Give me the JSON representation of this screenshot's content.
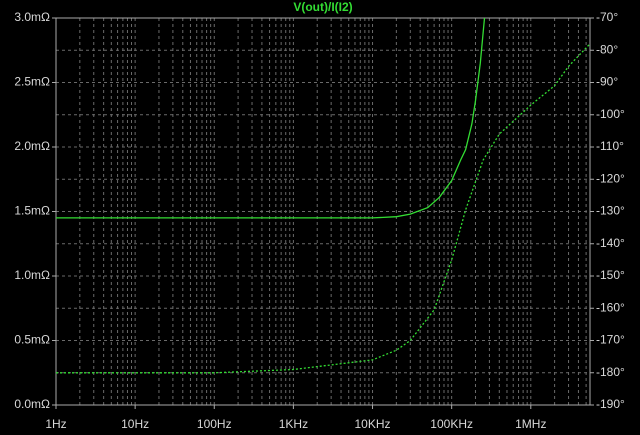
{
  "chart_data": {
    "type": "line",
    "title": "V(out)/I(I2)",
    "xscale": "log",
    "xlim": [
      1,
      5600000
    ],
    "xticks": [
      {
        "value": 1,
        "label": "1Hz"
      },
      {
        "value": 10,
        "label": "10Hz"
      },
      {
        "value": 100,
        "label": "100Hz"
      },
      {
        "value": 1000,
        "label": "1KHz"
      },
      {
        "value": 10000,
        "label": "10KHz"
      },
      {
        "value": 100000,
        "label": "100KHz"
      },
      {
        "value": 1000000,
        "label": "1MHz"
      }
    ],
    "ylim": [
      0,
      3
    ],
    "yticks": [
      {
        "value": 0,
        "label": "0.0mΩ"
      },
      {
        "value": 0.5,
        "label": "0.5mΩ"
      },
      {
        "value": 1,
        "label": "1.0mΩ"
      },
      {
        "value": 1.5,
        "label": "1.5mΩ"
      },
      {
        "value": 2,
        "label": "2.0mΩ"
      },
      {
        "value": 2.5,
        "label": "2.5mΩ"
      },
      {
        "value": 3,
        "label": "3.0mΩ"
      }
    ],
    "y2lim": [
      -190,
      -70
    ],
    "y2ticks": [
      {
        "value": -190,
        "label": "-190°"
      },
      {
        "value": -180,
        "label": "-180°"
      },
      {
        "value": -170,
        "label": "-170°"
      },
      {
        "value": -160,
        "label": "-160°"
      },
      {
        "value": -150,
        "label": "-150°"
      },
      {
        "value": -140,
        "label": "-140°"
      },
      {
        "value": -130,
        "label": "-130°"
      },
      {
        "value": -120,
        "label": "-120°"
      },
      {
        "value": -110,
        "label": "-110°"
      },
      {
        "value": -100,
        "label": "-100°"
      },
      {
        "value": -90,
        "label": "-90°"
      },
      {
        "value": -80,
        "label": "-80°"
      },
      {
        "value": -70,
        "label": "-70°"
      }
    ],
    "grid": true,
    "series": [
      {
        "color": "#33dd33",
        "dash": false,
        "x": [
          1,
          10,
          100,
          1000,
          10000,
          20000,
          30000,
          50000,
          70000,
          100000,
          130000,
          150000,
          180000,
          200000,
          230000,
          260000
        ],
        "values": [
          1.45,
          1.45,
          1.45,
          1.45,
          1.45,
          1.46,
          1.48,
          1.53,
          1.61,
          1.74,
          1.9,
          1.98,
          2.18,
          2.36,
          2.65,
          3.0
        ]
      },
      {
        "color": "#33dd33",
        "dash": true,
        "axis": "y2",
        "x": [
          1,
          100,
          1000,
          10000,
          20000,
          30000,
          60000,
          100000,
          150000,
          250000,
          400000,
          1000000,
          2000000,
          3000000,
          5600000
        ],
        "values": [
          -180,
          -180,
          -179,
          -176,
          -173,
          -170,
          -160.5,
          -145,
          -129.5,
          -114,
          -106,
          -97,
          -91,
          -85,
          -78
        ]
      }
    ]
  }
}
